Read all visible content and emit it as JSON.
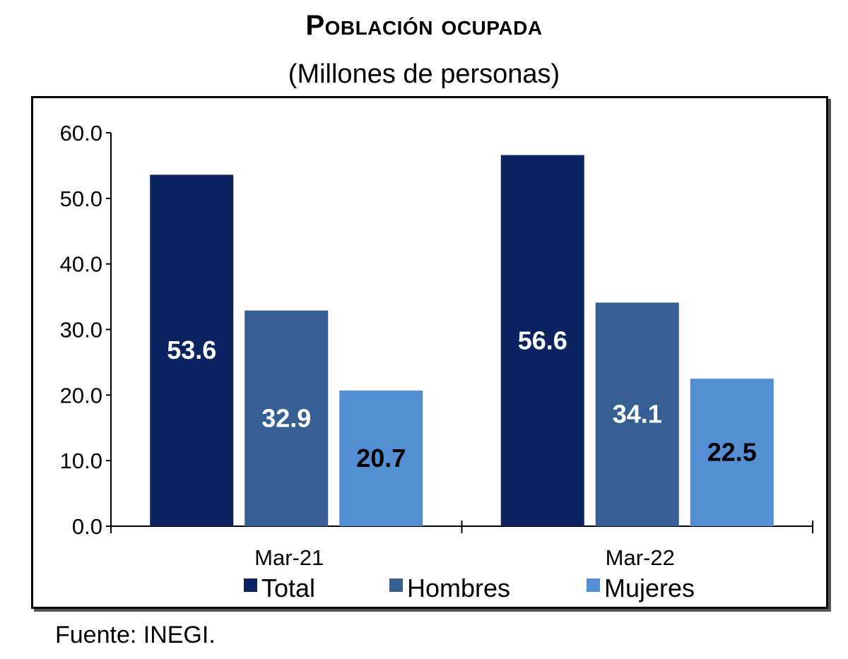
{
  "chart_data": {
    "type": "bar",
    "title": "Población ocupada",
    "subtitle": "(Millones de personas)",
    "categories": [
      "Mar-21",
      "Mar-22"
    ],
    "series": [
      {
        "name": "Total",
        "values": [
          53.6,
          56.6
        ],
        "color": "#0b2360",
        "label_color": "#ffffff"
      },
      {
        "name": "Hombres",
        "values": [
          32.9,
          34.1
        ],
        "color": "#365f93",
        "label_color": "#ffffff"
      },
      {
        "name": "Mujeres",
        "values": [
          20.7,
          22.5
        ],
        "color": "#548fd4",
        "label_color": "#000000"
      }
    ],
    "ylim": [
      0,
      60
    ],
    "yticks": [
      "0.0",
      "10.0",
      "20.0",
      "30.0",
      "40.0",
      "50.0",
      "60.0"
    ],
    "grid": false,
    "legend": "bottom",
    "source": "Fuente: INEGI."
  }
}
